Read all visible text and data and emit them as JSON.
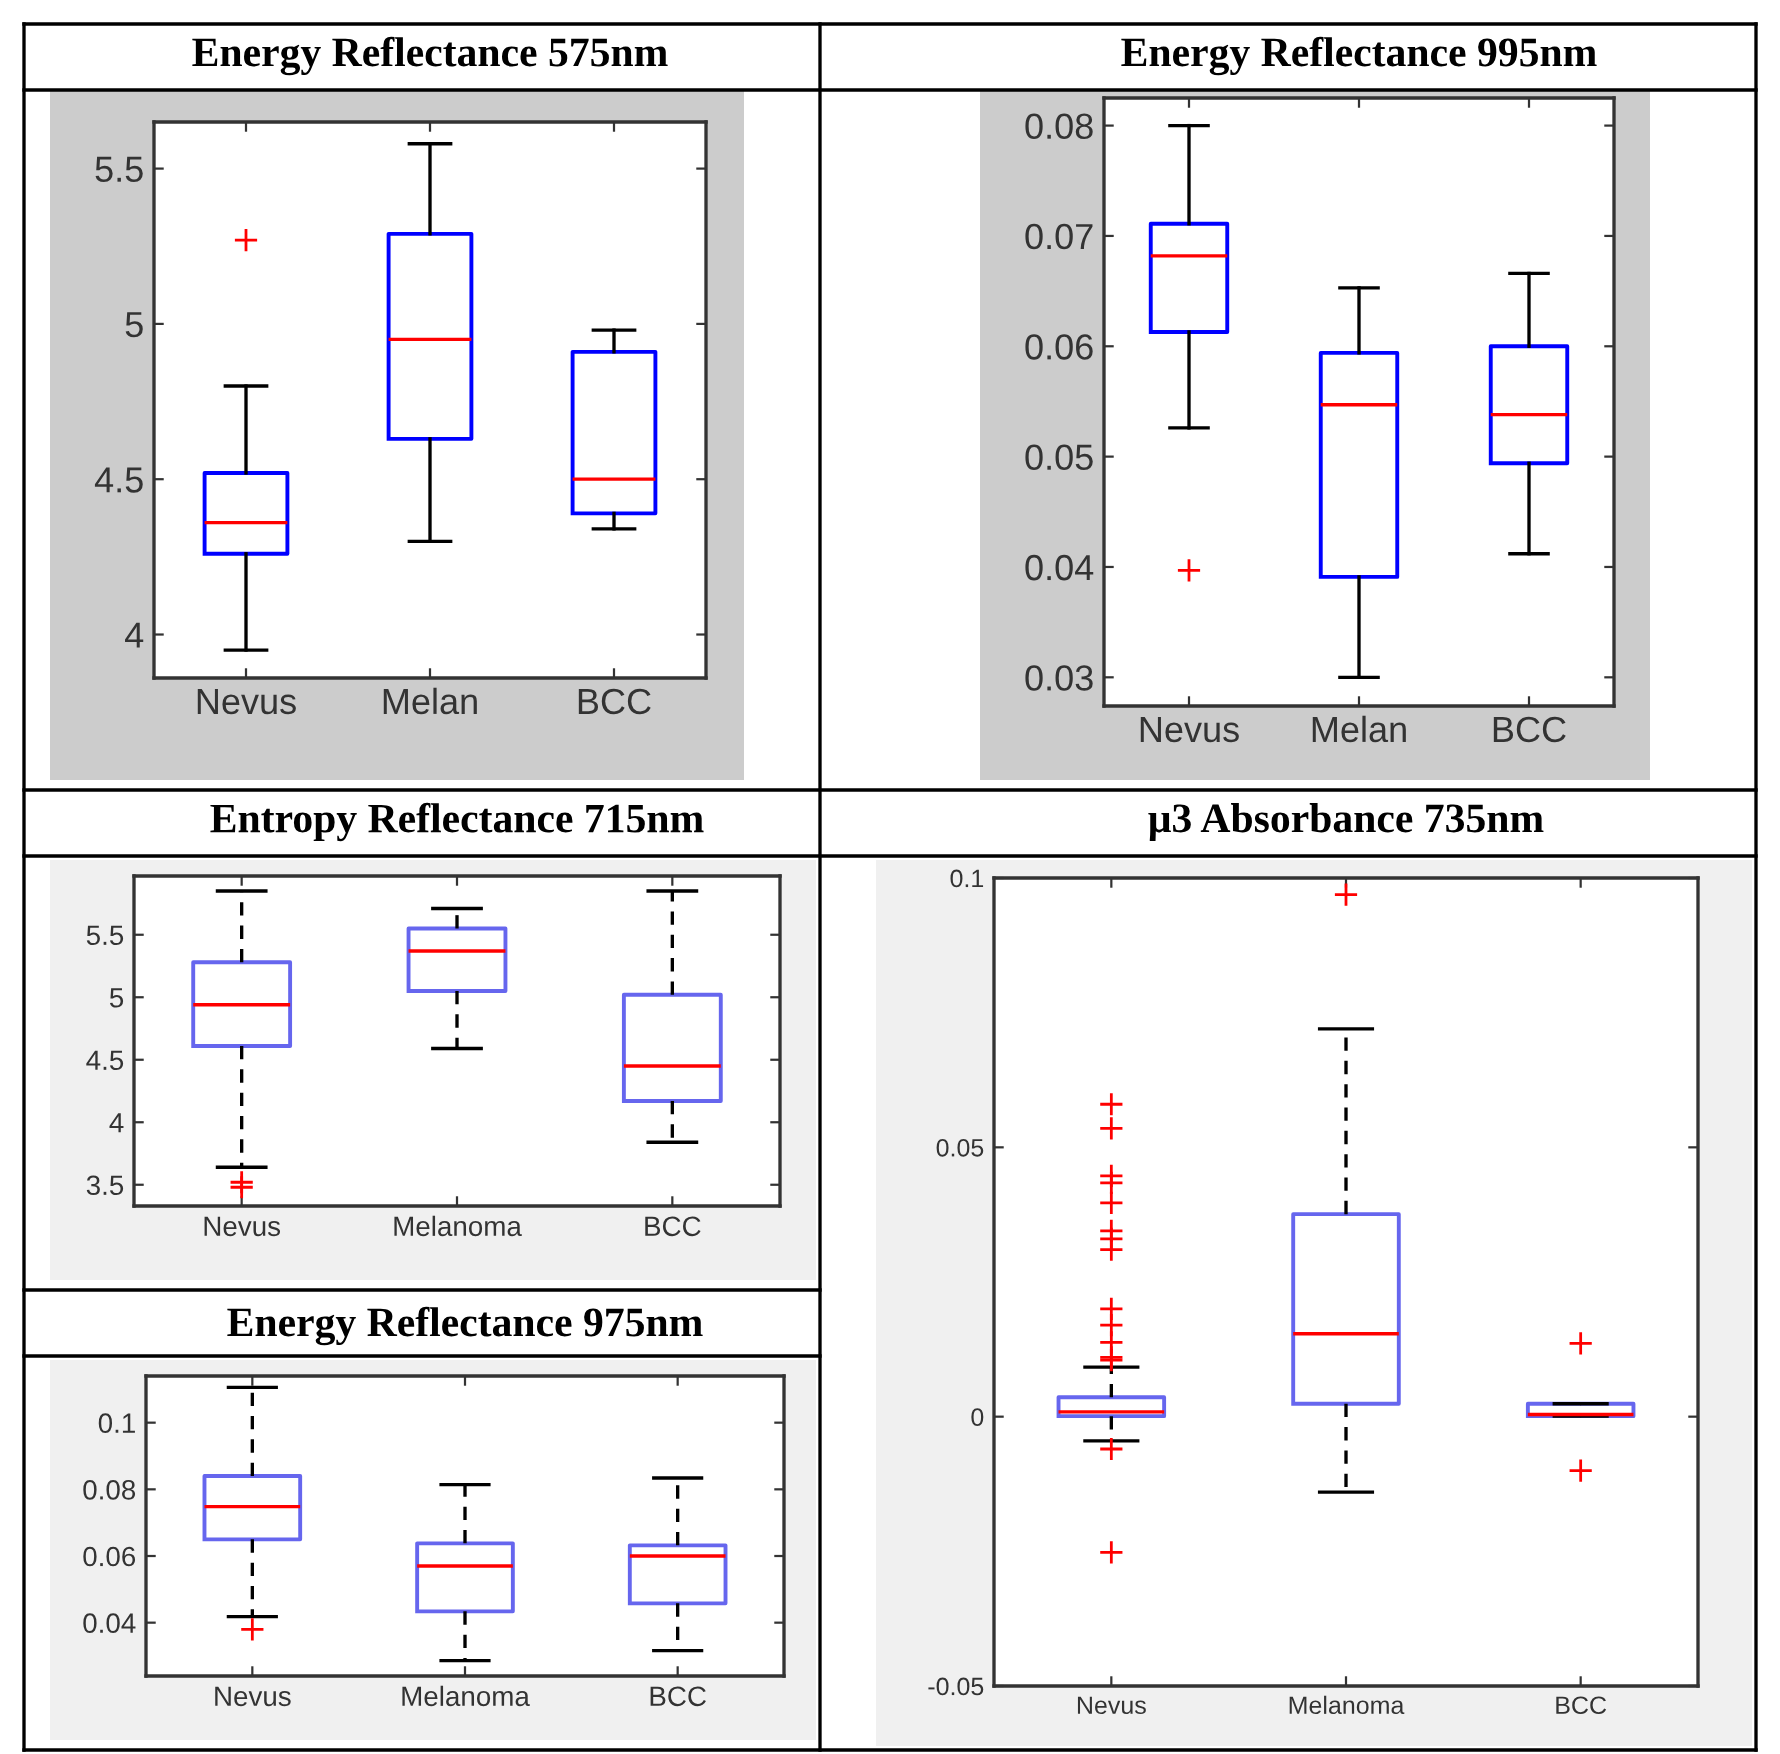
{
  "chart_data": [
    {
      "type": "box",
      "title": "Energy Reflectance 575nm",
      "categories": [
        "Nevus",
        "Melan",
        "BCC"
      ],
      "ylim": [
        3.86,
        5.65
      ],
      "yticks": [
        4,
        4.5,
        5,
        5.5
      ],
      "line_style": "solid",
      "series": [
        {
          "color": "#0000ff",
          "boxes": [
            {
              "low": 3.95,
              "q1": 4.26,
              "median": 4.36,
              "q3": 4.52,
              "high": 4.8,
              "outliers": [
                5.27
              ]
            },
            {
              "low": 4.3,
              "q1": 4.63,
              "median": 4.95,
              "q3": 5.29,
              "high": 5.58
            },
            {
              "low": 4.34,
              "q1": 4.39,
              "median": 4.5,
              "q3": 4.91,
              "high": 4.98
            }
          ]
        }
      ]
    },
    {
      "type": "box",
      "title": "Energy Reflectance 995nm",
      "categories": [
        "Nevus",
        "Melan",
        "BCC"
      ],
      "ylim": [
        0.0274,
        0.0825
      ],
      "yticks": [
        0.03,
        0.04,
        0.05,
        0.06,
        0.07,
        0.08
      ],
      "line_style": "solid",
      "series": [
        {
          "color": "#0000ff",
          "boxes": [
            {
              "low": 0.0526,
              "q1": 0.0613,
              "median": 0.0682,
              "q3": 0.0711,
              "high": 0.08,
              "outliers": [
                0.0397
              ]
            },
            {
              "low": 0.03,
              "q1": 0.0391,
              "median": 0.0547,
              "q3": 0.0594,
              "high": 0.0653
            },
            {
              "low": 0.0412,
              "q1": 0.0494,
              "median": 0.0538,
              "q3": 0.06,
              "high": 0.0666
            }
          ]
        }
      ]
    },
    {
      "type": "box",
      "title": "Entropy Reflectance 715nm",
      "categories": [
        "Nevus",
        "Melanoma",
        "BCC"
      ],
      "ylim": [
        3.33,
        5.97
      ],
      "yticks": [
        3.5,
        4,
        4.5,
        5,
        5.5
      ],
      "line_style": "dashed",
      "series": [
        {
          "color": "#6666ee",
          "boxes": [
            {
              "low": 3.64,
              "q1": 4.61,
              "median": 4.94,
              "q3": 5.28,
              "high": 5.85,
              "outliers": [
                3.52,
                3.48
              ]
            },
            {
              "low": 4.59,
              "q1": 5.05,
              "median": 5.37,
              "q3": 5.55,
              "high": 5.71
            },
            {
              "low": 3.84,
              "q1": 4.17,
              "median": 4.45,
              "q3": 5.02,
              "high": 5.85
            }
          ]
        }
      ]
    },
    {
      "type": "box",
      "title": "Energy Reflectance 975nm",
      "categories": [
        "Nevus",
        "Melanoma",
        "BCC"
      ],
      "ylim": [
        0.024,
        0.114
      ],
      "yticks": [
        0.04,
        0.06,
        0.08,
        0.1
      ],
      "line_style": "dashed",
      "series": [
        {
          "color": "#6666ee",
          "boxes": [
            {
              "low": 0.0418,
              "q1": 0.065,
              "median": 0.0748,
              "q3": 0.084,
              "high": 0.1106,
              "outliers": [
                0.038
              ]
            },
            {
              "low": 0.0286,
              "q1": 0.0434,
              "median": 0.057,
              "q3": 0.0638,
              "high": 0.0814
            },
            {
              "low": 0.0316,
              "q1": 0.0458,
              "median": 0.06,
              "q3": 0.0632,
              "high": 0.0834
            }
          ]
        }
      ]
    },
    {
      "type": "box",
      "title": "μ3 Absorbance 735nm",
      "categories": [
        "Nevus",
        "Melanoma",
        "BCC"
      ],
      "ylim": [
        -0.05,
        0.1
      ],
      "yticks": [
        -0.05,
        0,
        0.05,
        0.1
      ],
      "line_style": "dashed",
      "series": [
        {
          "color": "#6666ee",
          "boxes": [
            {
              "low": -0.0045,
              "q1": 0.0001,
              "median": 0.0009,
              "q3": 0.0036,
              "high": 0.0092,
              "outliers": [
                0.058,
                0.0535,
                0.0447,
                0.0434,
                0.0397,
                0.0345,
                0.033,
                0.031,
                0.02,
                0.017,
                0.0138,
                0.011,
                0.0105,
                -0.006,
                -0.0252
              ]
            },
            {
              "low": -0.014,
              "q1": 0.0024,
              "median": 0.0154,
              "q3": 0.0376,
              "high": 0.072,
              "outliers": [
                0.0969
              ]
            },
            {
              "low": 0.0001,
              "q1": 0.0001,
              "median": 0.0004,
              "q3": 0.0024,
              "high": 0.0024,
              "outliers": [
                0.0136,
                -0.01
              ]
            }
          ]
        }
      ]
    }
  ]
}
